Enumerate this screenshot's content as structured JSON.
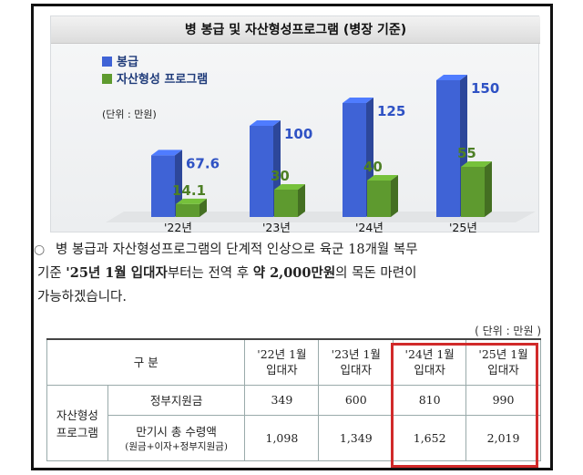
{
  "chart_data": {
    "type": "bar",
    "title": "병 봉급 및 자산형성프로그램 (병장 기준)",
    "unit_label": "(단위 : 만원)",
    "categories": [
      "'22년",
      "'23년",
      "'24년",
      "'25년"
    ],
    "series": [
      {
        "name": "봉급",
        "values": [
          67.6,
          100,
          125,
          150
        ],
        "color": "#3f63d6",
        "label_color": "#2f52c4"
      },
      {
        "name": "자산형성 프로그램",
        "values": [
          14.1,
          30,
          40,
          55
        ],
        "color": "#5e9a2f",
        "label_color": "#4d7f25"
      }
    ],
    "ylim": [
      0,
      150
    ]
  },
  "paragraph": {
    "bullet": "○",
    "line1": "병 봉급과 자산형성프로그램의 단계적 인상으로 육군 18개월 복무",
    "line2_pre": "기준 ",
    "line2_bold1": "'25년 1월 입대자",
    "line2_mid": "부터는 전역 후 ",
    "line2_bold2": "약 2,000만원",
    "line2_post": "의 목돈 마련이",
    "line3": "가능하겠습니다."
  },
  "unit_note": "( 단위 : 만원 )",
  "table": {
    "header_group": "구  분",
    "columns": [
      {
        "l1": "'22년 1월",
        "l2": "입대자"
      },
      {
        "l1": "'23년 1월",
        "l2": "입대자"
      },
      {
        "l1": "'24년 1월",
        "l2": "입대자"
      },
      {
        "l1": "'25년 1월",
        "l2": "입대자"
      }
    ],
    "row_group_l1": "자산형성",
    "row_group_l2": "프로그램",
    "row1_label": "정부지원금",
    "row1_values": [
      "349",
      "600",
      "810",
      "990"
    ],
    "row2_label": "만기시 총 수령액",
    "row2_sublabel": "(원금+이자+정부지원금)",
    "row2_values": [
      "1,098",
      "1,349",
      "1,652",
      "2,019"
    ]
  },
  "colors": {
    "highlight": "#d12a2a"
  }
}
